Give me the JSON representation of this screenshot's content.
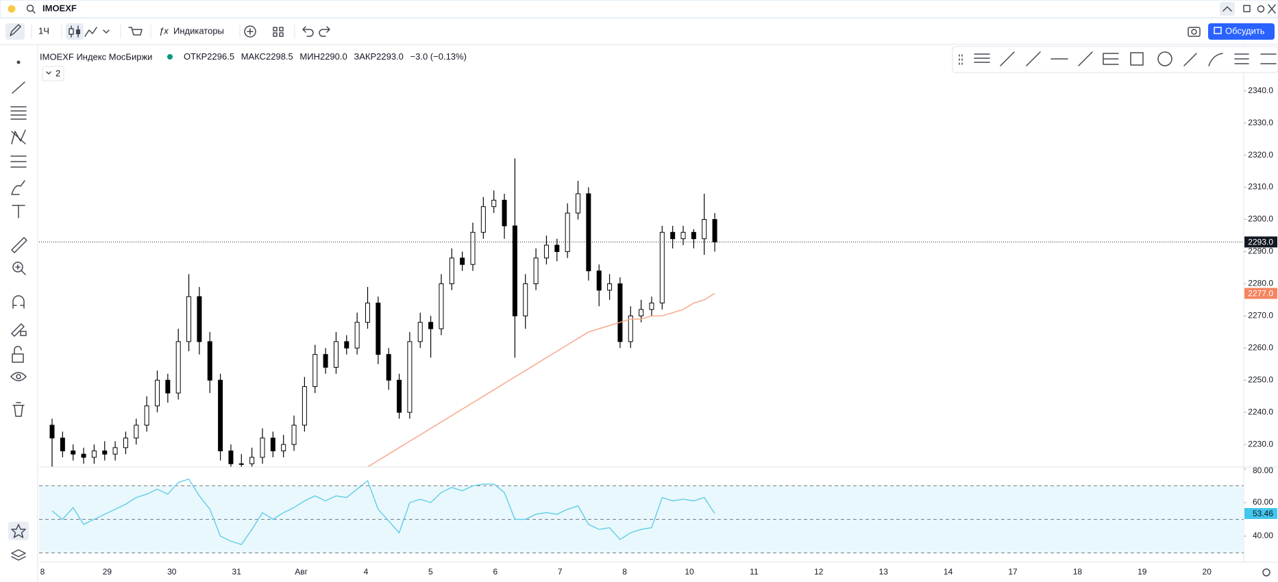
{
  "top_bar": {
    "symbol": "IMOEXF"
  },
  "toolbar": {
    "interval": "1Ч",
    "indicators": "Индикаторы",
    "discuss": "Обсудить"
  },
  "legend": {
    "title": "IMOEXF Индекс МосБиржи",
    "open_label": "ОТКР",
    "open": "2296.5",
    "high_label": "МАКС",
    "high": "2298.5",
    "low_label": "МИН",
    "low": "2290.0",
    "close_label": "ЗАКР",
    "close": "2293.0",
    "change": "−3.0 (−0.13%)",
    "collapsed_count": "2"
  },
  "chart_data": [
    {
      "type": "candlestick",
      "up_color": "#ffffff",
      "down_color": "#000000",
      "outline_color": "#000000",
      "candles": [
        [
          2236,
          2238,
          2223,
          2232
        ],
        [
          2232,
          2234,
          2226,
          2228
        ],
        [
          2228,
          2230,
          2225,
          2227
        ],
        [
          2227,
          2229,
          2224,
          2226
        ],
        [
          2226,
          2230,
          2224,
          2228
        ],
        [
          2228,
          2231,
          2225,
          2227
        ],
        [
          2227,
          2231,
          2225,
          2229
        ],
        [
          2229,
          2234,
          2227,
          2232
        ],
        [
          2232,
          2238,
          2230,
          2236
        ],
        [
          2236,
          2245,
          2234,
          2242
        ],
        [
          2242,
          2253,
          2240,
          2250
        ],
        [
          2250,
          2252,
          2243,
          2246
        ],
        [
          2246,
          2266,
          2244,
          2262
        ],
        [
          2262,
          2283,
          2259,
          2276
        ],
        [
          2276,
          2279,
          2258,
          2262
        ],
        [
          2262,
          2265,
          2246,
          2250
        ],
        [
          2250,
          2252,
          2225,
          2228
        ],
        [
          2228,
          2230,
          2221,
          2224
        ],
        [
          2224,
          2227,
          2221,
          2224
        ],
        [
          2224,
          2229,
          2222,
          2226
        ],
        [
          2226,
          2235,
          2224,
          2232
        ],
        [
          2232,
          2234,
          2226,
          2228
        ],
        [
          2228,
          2233,
          2226,
          2230
        ],
        [
          2230,
          2239,
          2228,
          2236
        ],
        [
          2236,
          2251,
          2234,
          2248
        ],
        [
          2248,
          2261,
          2246,
          2258
        ],
        [
          2258,
          2260,
          2252,
          2254
        ],
        [
          2254,
          2265,
          2252,
          2262
        ],
        [
          2262,
          2264,
          2258,
          2260
        ],
        [
          2260,
          2271,
          2258,
          2268
        ],
        [
          2268,
          2279,
          2266,
          2274
        ],
        [
          2274,
          2276,
          2255,
          2258
        ],
        [
          2258,
          2260,
          2247,
          2250
        ],
        [
          2250,
          2252,
          2238,
          2240
        ],
        [
          2240,
          2265,
          2238,
          2262
        ],
        [
          2262,
          2271,
          2260,
          2268
        ],
        [
          2268,
          2270,
          2257,
          2266
        ],
        [
          2266,
          2283,
          2264,
          2280
        ],
        [
          2280,
          2291,
          2278,
          2288
        ],
        [
          2288,
          2290,
          2284,
          2286
        ],
        [
          2286,
          2299,
          2284,
          2296
        ],
        [
          2296,
          2307,
          2294,
          2304
        ],
        [
          2304,
          2309,
          2302,
          2306
        ],
        [
          2306,
          2308,
          2294,
          2298
        ],
        [
          2298,
          2319,
          2257,
          2270
        ],
        [
          2270,
          2283,
          2266,
          2280
        ],
        [
          2280,
          2291,
          2278,
          2288
        ],
        [
          2288,
          2295,
          2286,
          2292
        ],
        [
          2292,
          2294,
          2287,
          2290
        ],
        [
          2290,
          2305,
          2288,
          2302
        ],
        [
          2302,
          2312,
          2300,
          2308
        ],
        [
          2308,
          2310,
          2281,
          2284
        ],
        [
          2284,
          2286,
          2273,
          2278
        ],
        [
          2278,
          2283,
          2275,
          2280
        ],
        [
          2280,
          2282,
          2260,
          2262
        ],
        [
          2262,
          2273,
          2260,
          2270
        ],
        [
          2270,
          2275,
          2268,
          2272
        ],
        [
          2272,
          2276,
          2270,
          2274
        ],
        [
          2274,
          2298,
          2272,
          2296
        ],
        [
          2296,
          2298,
          2291,
          2294
        ],
        [
          2294,
          2298,
          2292,
          2296
        ],
        [
          2296,
          2297,
          2291,
          2294
        ],
        [
          2294,
          2308,
          2289,
          2300
        ],
        [
          2300,
          2302,
          2290,
          2293
        ]
      ],
      "ma_color": "#f7a98a",
      "ma_values": [
        null,
        null,
        null,
        null,
        null,
        null,
        null,
        null,
        null,
        null,
        null,
        null,
        null,
        null,
        null,
        null,
        null,
        null,
        null,
        null,
        null,
        null,
        null,
        null,
        null,
        null,
        null,
        null,
        null,
        null,
        2223,
        2225,
        2227,
        2229,
        2231,
        2233,
        2235,
        2237,
        2239,
        2241,
        2243,
        2245,
        2247,
        2249,
        2251,
        2253,
        2255,
        2257,
        2259,
        2261,
        2263,
        2265,
        2266,
        2267,
        2268,
        2269,
        2269,
        2270,
        2270,
        2271,
        2272,
        2274,
        2275,
        2277
      ],
      "ylim": [
        2223,
        2354
      ],
      "yticks": [
        {
          "value": 2230,
          "label": "2230.0"
        },
        {
          "value": 2240,
          "label": "2240.0"
        },
        {
          "value": 2250,
          "label": "2250.0"
        },
        {
          "value": 2260,
          "label": "2260.0"
        },
        {
          "value": 2270,
          "label": "2270.0"
        },
        {
          "value": 2280,
          "label": "2280.0"
        },
        {
          "value": 2290,
          "label": "2290.0"
        },
        {
          "value": 2300,
          "label": "2300.0"
        },
        {
          "value": 2310,
          "label": "2310.0"
        },
        {
          "value": 2320,
          "label": "2320.0"
        },
        {
          "value": 2330,
          "label": "2330.0"
        },
        {
          "value": 2340,
          "label": "2340.0"
        }
      ],
      "last_price": {
        "value": 2293,
        "label": "2293.0"
      },
      "ma_last": {
        "value": 2277,
        "label": "2277.0"
      }
    },
    {
      "type": "rsi",
      "color": "#5fcde8",
      "band_color": "#e9f8fd",
      "values": [
        55,
        50,
        57,
        47,
        50,
        53,
        56,
        59,
        63,
        65,
        68,
        65,
        72,
        74,
        64,
        56,
        40,
        37,
        35,
        44,
        54,
        50,
        54,
        57,
        61,
        64,
        61,
        64,
        63,
        68,
        73,
        56,
        49,
        42,
        60,
        62,
        60,
        66,
        69,
        67,
        70,
        71,
        71,
        66,
        50,
        50,
        53,
        54,
        53,
        56,
        58,
        47,
        44,
        45,
        38,
        42,
        44,
        45,
        63,
        61,
        62,
        61,
        63,
        53.46
      ],
      "value_labels": [
        null,
        null,
        null,
        null,
        null,
        null,
        null,
        null,
        null,
        null,
        null,
        null,
        null,
        null,
        null,
        null,
        null,
        null,
        null,
        null,
        null,
        null,
        null,
        null,
        null,
        null,
        null,
        null,
        null,
        null,
        null,
        null,
        null,
        null,
        null,
        null,
        null,
        null,
        null,
        null,
        null,
        null,
        null,
        null,
        null,
        null,
        null,
        null,
        null,
        null,
        null,
        null,
        null,
        null,
        null,
        null,
        null,
        null,
        null,
        null,
        null,
        null,
        null,
        "53.46"
      ],
      "levels": [
        70,
        50,
        30
      ],
      "ylim": [
        24.5,
        81.2
      ],
      "yticks": [
        {
          "value": 40,
          "label": "40.00"
        },
        {
          "value": 60,
          "label": "60.00"
        },
        {
          "value": 80,
          "label": "80.00"
        }
      ]
    }
  ],
  "time_axis": {
    "labels": [
      "8",
      "29",
      "30",
      "31",
      "Авг",
      "4",
      "5",
      "6",
      "7",
      "8",
      "10",
      "11",
      "12",
      "13",
      "14",
      "17",
      "18",
      "19",
      "20"
    ]
  }
}
